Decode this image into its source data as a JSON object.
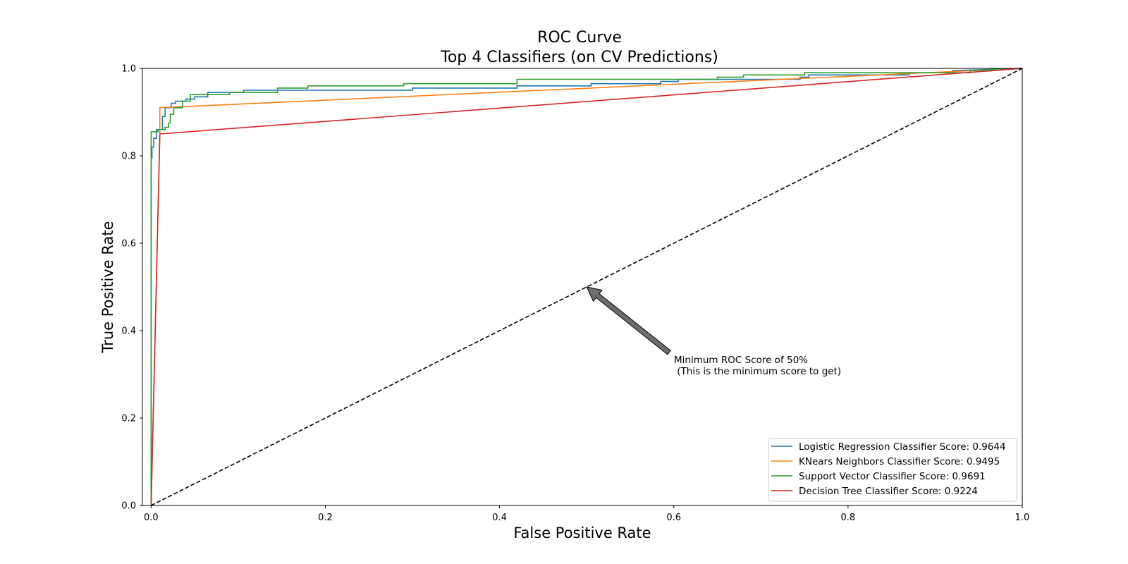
{
  "chart_data": {
    "type": "line",
    "title": "ROC Curve",
    "subtitle": "Top 4 Classifiers (on CV Predictions)",
    "xlabel": "False Positive Rate",
    "ylabel": "True Positive Rate",
    "xlim": [
      -0.01,
      1.0
    ],
    "ylim": [
      0.0,
      1.0
    ],
    "xticks": [
      "0.0",
      "0.2",
      "0.4",
      "0.6",
      "0.8",
      "1.0"
    ],
    "yticks": [
      "0.0",
      "0.2",
      "0.4",
      "0.6",
      "0.8",
      "1.0"
    ],
    "grid": false,
    "legend_position": "bottom-right",
    "series": [
      {
        "name": "Logistic Regression Classifier Score: 0.9644",
        "color": "#1f77b4",
        "step": true,
        "x": [
          0.0,
          0.0,
          0.001,
          0.001,
          0.003,
          0.003,
          0.006,
          0.006,
          0.013,
          0.013,
          0.016,
          0.016,
          0.023,
          0.023,
          0.028,
          0.028,
          0.04,
          0.04,
          0.05,
          0.05,
          0.065,
          0.065,
          0.106,
          0.106,
          0.3,
          0.3,
          0.42,
          0.42,
          0.505,
          0.505,
          0.585,
          0.585,
          0.605,
          0.605,
          0.745,
          0.745,
          0.755,
          0.755,
          0.87,
          0.87,
          0.92,
          0.92,
          1.0
        ],
        "y": [
          0.0,
          0.795,
          0.795,
          0.82,
          0.82,
          0.84,
          0.84,
          0.86,
          0.86,
          0.89,
          0.89,
          0.91,
          0.91,
          0.92,
          0.92,
          0.925,
          0.925,
          0.93,
          0.93,
          0.935,
          0.935,
          0.945,
          0.945,
          0.95,
          0.95,
          0.955,
          0.955,
          0.96,
          0.96,
          0.965,
          0.965,
          0.97,
          0.97,
          0.975,
          0.975,
          0.98,
          0.98,
          0.985,
          0.985,
          0.99,
          0.99,
          0.995,
          1.0
        ]
      },
      {
        "name": "KNears Neighbors Classifier Score: 0.9495",
        "color": "#ff7f0e",
        "step": false,
        "x": [
          0.0,
          0.01,
          0.01,
          1.0
        ],
        "y": [
          0.0,
          0.85,
          0.91,
          1.0
        ]
      },
      {
        "name": "Support Vector Classifier Score: 0.9691",
        "color": "#2ca02c",
        "step": true,
        "x": [
          0.0,
          0.0,
          0.008,
          0.008,
          0.016,
          0.016,
          0.02,
          0.02,
          0.022,
          0.022,
          0.026,
          0.026,
          0.036,
          0.036,
          0.045,
          0.045,
          0.09,
          0.09,
          0.145,
          0.145,
          0.18,
          0.18,
          0.29,
          0.29,
          0.42,
          0.42,
          0.65,
          0.65,
          0.68,
          0.68,
          0.75,
          0.75,
          0.94,
          0.94,
          1.0
        ],
        "y": [
          0.0,
          0.855,
          0.855,
          0.86,
          0.86,
          0.865,
          0.865,
          0.875,
          0.875,
          0.895,
          0.895,
          0.91,
          0.91,
          0.925,
          0.925,
          0.94,
          0.94,
          0.945,
          0.945,
          0.955,
          0.955,
          0.96,
          0.96,
          0.965,
          0.965,
          0.975,
          0.975,
          0.98,
          0.98,
          0.985,
          0.985,
          0.99,
          0.99,
          0.995,
          1.0
        ]
      },
      {
        "name": "Decision Tree Classifier Score: 0.9224",
        "color": "#d62728",
        "step": false,
        "x": [
          0.0,
          0.01,
          1.0
        ],
        "y": [
          0.0,
          0.85,
          1.0
        ]
      }
    ],
    "reference_line": {
      "style": "dashed",
      "color": "#000000",
      "x": [
        0.0,
        1.0
      ],
      "y": [
        0.0,
        1.0
      ]
    },
    "annotation": {
      "text_line1": "Minimum ROC Score of 50%",
      "text_line2": " (This is the minimum score to get)",
      "text_x": 0.6,
      "text_y": 0.32,
      "arrow_x": 0.5,
      "arrow_y": 0.5,
      "arrow_color": "#6e6e6e"
    }
  }
}
